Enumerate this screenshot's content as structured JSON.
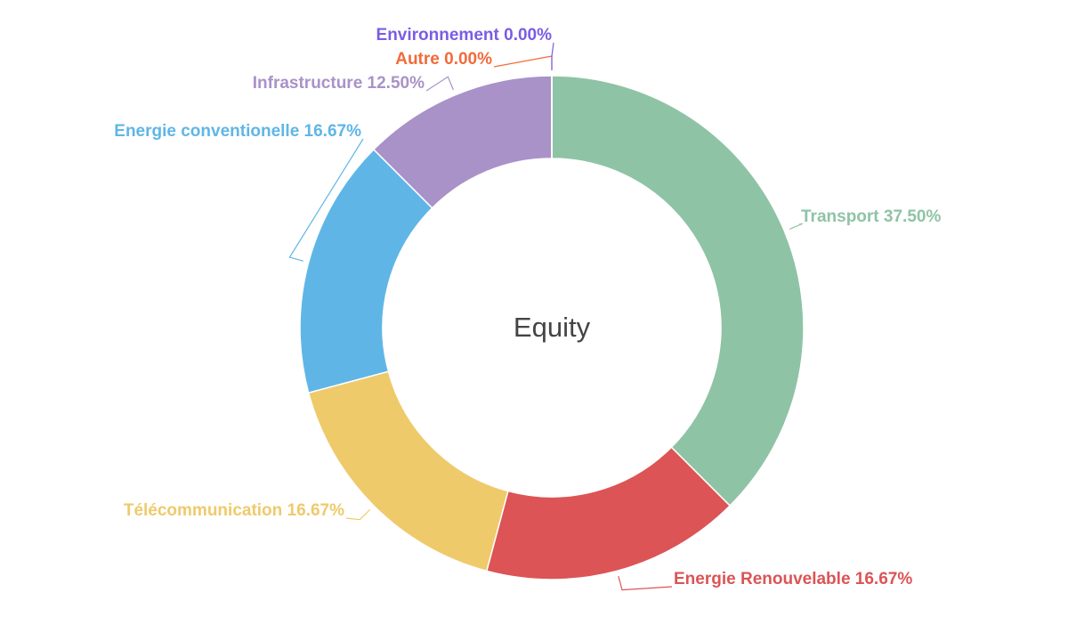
{
  "chart_data": {
    "type": "donut",
    "center_text": "Equity",
    "categories": [
      "Transport",
      "Energie Renouvelable",
      "Télécommunication",
      "Energie conventionelle",
      "Infrastructure",
      "Autre",
      "Environnement"
    ],
    "values": [
      37.5,
      16.67,
      16.67,
      16.67,
      12.5,
      0,
      0
    ],
    "value_labels": [
      "37.50%",
      "16.67%",
      "16.67%",
      "16.67%",
      "12.50%",
      "0.00%",
      "0.00%"
    ],
    "colors": [
      "#8fc3a5",
      "#dc5455",
      "#efca6b",
      "#5fb6e6",
      "#a992c8",
      "#f26b3a",
      "#7b5ce5"
    ]
  }
}
